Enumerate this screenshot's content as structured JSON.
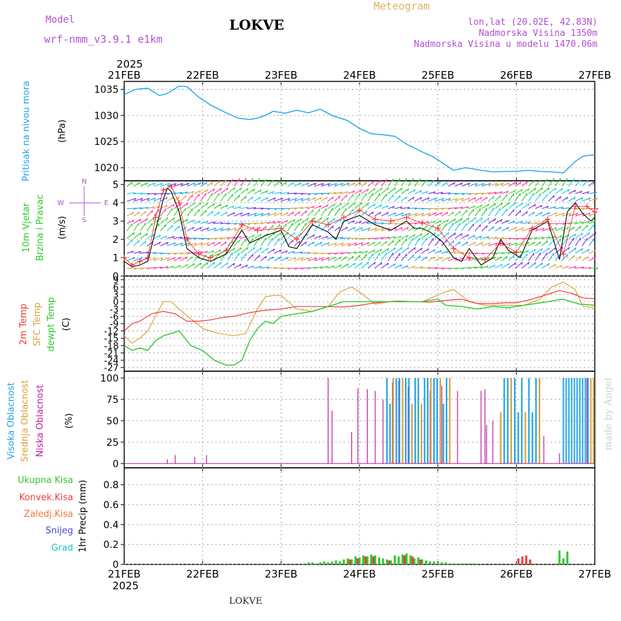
{
  "header": {
    "model_label": "Model",
    "model_name": "wrf-nmm_v3.9.1 e1km",
    "station": "LOKVE",
    "meteogram": "Meteogram",
    "lonlat": "lon,lat (20.02E, 42.83N)",
    "altitude": "Nadmorska Visina 1350m",
    "model_altitude": "Nadmorska Visina u modelu 1470.06m"
  },
  "footer": {
    "station": "LOKVE",
    "watermark": "made by Angel"
  },
  "time_axis": {
    "year": "2025",
    "ticks": [
      "21FEB",
      "22FEB",
      "23FEB",
      "24FEB",
      "25FEB",
      "26FEB",
      "27FEB"
    ]
  },
  "colors": {
    "pressure": "#1ea4e6",
    "wind_speed": "#000000",
    "gust": "#ff3030",
    "temp2m": "#ee3b3b",
    "sfc_temp": "#d9a23a",
    "dewpt": "#2cc82c",
    "cloud_high": "#1ea4e6",
    "cloud_mid": "#d9a23a",
    "cloud_low": "#c0209a",
    "precip_total": "#2cc82c",
    "precip_conv": "#ee3b3b",
    "precip_frz": "#f07a30",
    "precip_snow": "#4848d8",
    "precip_hail": "#20c0c0",
    "header_purple": "#b050d0",
    "meteogram": "#e0b060"
  },
  "chart_data": [
    {
      "type": "line",
      "title": "",
      "ylabel_parts": [
        "Pritisak na nivou mora",
        "(hPa)"
      ],
      "yticks": [
        1020,
        1025,
        1030,
        1035
      ],
      "ylim": [
        1017.5,
        1036.5
      ],
      "xlim": [
        0,
        6
      ],
      "series": [
        {
          "x": [
            0,
            0.15,
            0.3,
            0.45,
            0.55,
            0.7,
            0.8,
            0.95,
            1.1,
            1.3,
            1.45,
            1.6,
            1.7,
            1.8,
            1.9,
            2.05,
            2.2,
            2.35,
            2.5,
            2.65,
            2.85,
            3.0,
            3.15,
            3.3,
            3.45,
            3.6,
            3.8,
            3.95,
            4.05,
            4.2,
            4.35,
            4.55,
            4.7,
            4.85,
            5.0,
            5.15,
            5.3,
            5.45,
            5.6,
            5.75,
            5.85,
            6.0
          ],
          "values": [
            1034,
            1035,
            1035.2,
            1033.8,
            1034.2,
            1035.6,
            1035.5,
            1033.5,
            1032,
            1030.5,
            1029.5,
            1029.2,
            1029.5,
            1030,
            1030.8,
            1030.4,
            1031,
            1030.5,
            1031.2,
            1030,
            1029,
            1027.5,
            1026.5,
            1026.3,
            1026,
            1024.5,
            1023,
            1022,
            1021,
            1019.5,
            1020,
            1019.5,
            1019.2,
            1019.3,
            1019.3,
            1019.5,
            1019.3,
            1019.2,
            1019.0,
            1021.2,
            1022.2,
            1022.5
          ]
        }
      ]
    },
    {
      "type": "line",
      "title": "",
      "ylabel_parts": [
        "10m Vjetar",
        "Brzina i Pravac",
        "(m/s)"
      ],
      "compass": [
        "N",
        "S",
        "W",
        "E"
      ],
      "yticks": [
        0,
        1,
        2,
        3,
        4,
        5
      ],
      "ylim": [
        0,
        5.2
      ],
      "xlim": [
        0,
        6
      ],
      "series": [
        {
          "name": "speed",
          "x": [
            0,
            0.1,
            0.2,
            0.3,
            0.4,
            0.5,
            0.55,
            0.6,
            0.7,
            0.8,
            0.95,
            1.1,
            1.3,
            1.5,
            1.6,
            1.7,
            1.8,
            2.0,
            2.1,
            2.2,
            2.4,
            2.6,
            2.7,
            2.8,
            3.0,
            3.2,
            3.4,
            3.6,
            3.7,
            3.8,
            3.9,
            4.05,
            4.2,
            4.3,
            4.4,
            4.55,
            4.7,
            4.8,
            4.9,
            5.05,
            5.2,
            5.4,
            5.55,
            5.65,
            5.75,
            5.85,
            5.95,
            6.0
          ],
          "values": [
            0.8,
            0.5,
            0.6,
            0.8,
            2.5,
            4.2,
            4.8,
            4.6,
            3.5,
            1.5,
            1.0,
            0.8,
            1.2,
            2.5,
            1.8,
            2.0,
            2.2,
            2.5,
            1.6,
            1.5,
            2.8,
            2.4,
            2.0,
            3.0,
            3.3,
            2.8,
            2.5,
            3.0,
            2.6,
            2.6,
            2.4,
            1.9,
            1.0,
            0.8,
            1.5,
            0.6,
            1.0,
            2.0,
            1.4,
            1.0,
            2.5,
            3.0,
            0.9,
            3.5,
            4.0,
            3.4,
            3.0,
            3.2
          ]
        },
        {
          "name": "gust",
          "x": [
            0,
            0.1,
            0.2,
            0.3,
            0.4,
            0.5,
            0.6,
            0.7,
            0.8,
            0.95,
            1.1,
            1.3,
            1.5,
            1.7,
            2.0,
            2.2,
            2.4,
            2.6,
            2.8,
            3.0,
            3.2,
            3.4,
            3.6,
            3.8,
            4.0,
            4.2,
            4.4,
            4.6,
            4.8,
            5.0,
            5.2,
            5.4,
            5.6,
            5.75,
            5.9,
            6.0
          ],
          "values": [
            1.0,
            0.6,
            0.8,
            1.0,
            3.2,
            4.7,
            4.9,
            4.0,
            2.0,
            1.2,
            1.0,
            1.4,
            2.8,
            2.5,
            2.6,
            2.0,
            3.0,
            2.8,
            3.2,
            3.6,
            3.1,
            3.0,
            3.2,
            2.9,
            2.6,
            1.5,
            1.0,
            0.9,
            1.8,
            1.3,
            2.6,
            3.1,
            1.2,
            3.8,
            3.8,
            3.5
          ]
        }
      ]
    },
    {
      "type": "line",
      "title": "",
      "ylabel_parts": [
        "2m Temp",
        "SFC Temp",
        "dewpt Temp",
        "(C)"
      ],
      "yticks": [
        -27,
        -24,
        -21,
        -18,
        -15,
        -12,
        -9,
        -6,
        -3,
        0,
        3,
        6,
        9
      ],
      "ylim": [
        -28.5,
        10.5
      ],
      "xlim": [
        0,
        6
      ],
      "series": [
        {
          "name": "2m Temp",
          "x": [
            0,
            0.1,
            0.2,
            0.35,
            0.5,
            0.65,
            0.8,
            0.95,
            1.1,
            1.25,
            1.4,
            1.6,
            1.8,
            2.0,
            2.2,
            2.5,
            2.8,
            3.0,
            3.2,
            3.35,
            3.5,
            3.7,
            3.9,
            4.1,
            4.3,
            4.5,
            4.7,
            4.85,
            5.0,
            5.2,
            5.4,
            5.55,
            5.7,
            5.85,
            6.0
          ],
          "values": [
            -12,
            -9,
            -8,
            -5,
            -4,
            -5,
            -8,
            -8,
            -7.5,
            -6.5,
            -6,
            -4.5,
            -3.5,
            -3,
            -2,
            -2,
            -2.2,
            -1.5,
            -0.5,
            0,
            0.2,
            0,
            -0.2,
            0.5,
            1,
            -0.8,
            -0.8,
            -0.5,
            -0.5,
            1,
            3,
            4.5,
            3.5,
            1.5,
            1.2
          ]
        },
        {
          "name": "SFC Temp",
          "x": [
            0,
            0.1,
            0.2,
            0.3,
            0.4,
            0.5,
            0.6,
            0.7,
            0.85,
            1.0,
            1.2,
            1.4,
            1.55,
            1.7,
            1.8,
            1.9,
            2.0,
            2.2,
            2.4,
            2.6,
            2.75,
            2.9,
            3.0,
            3.2,
            3.4,
            3.6,
            3.8,
            3.95,
            4.1,
            4.2,
            4.4,
            4.6,
            4.75,
            4.9,
            5.1,
            5.3,
            5.45,
            5.6,
            5.75,
            5.85,
            6.0
          ],
          "values": [
            -14,
            -17,
            -15,
            -12,
            -6,
            0,
            0,
            -3,
            -7,
            -11,
            -13,
            -14,
            -13,
            -3,
            2,
            2.5,
            2.5,
            -3,
            -4,
            -2,
            4,
            6,
            4,
            -1,
            0,
            0,
            0,
            2,
            4,
            5,
            0,
            -1.5,
            -1.5,
            -1.5,
            -1.5,
            1,
            6,
            8,
            5,
            -2,
            -2.5
          ]
        },
        {
          "name": "dewpt Temp",
          "x": [
            0,
            0.1,
            0.2,
            0.3,
            0.4,
            0.5,
            0.6,
            0.7,
            0.85,
            1.0,
            1.15,
            1.3,
            1.4,
            1.5,
            1.6,
            1.7,
            1.8,
            1.9,
            2.0,
            2.2,
            2.4,
            2.6,
            2.8,
            3.0,
            3.2,
            3.4,
            3.6,
            3.8,
            4.0,
            4.1,
            4.3,
            4.5,
            4.7,
            4.9,
            5.0,
            5.2,
            5.4,
            5.6,
            5.8,
            6.0
          ],
          "values": [
            -18,
            -20,
            -19,
            -20,
            -16,
            -14,
            -13,
            -12,
            -18,
            -20,
            -24,
            -26,
            -26,
            -24,
            -16,
            -11,
            -8,
            -9,
            -6,
            -5,
            -4,
            -2,
            0,
            0,
            0,
            0,
            0,
            0,
            1,
            -1.5,
            -2,
            -3,
            -2,
            -2.5,
            -2,
            -1,
            0,
            1,
            -1,
            -1.5
          ]
        }
      ]
    },
    {
      "type": "bar",
      "title": "",
      "ylabel_parts": [
        "Visoka Oblacnost",
        "Srednja Oblacnost",
        "Niska Oblacnost",
        "(%)"
      ],
      "yticks": [
        0,
        25,
        50,
        75,
        100
      ],
      "ylim": [
        -5,
        108
      ],
      "xlim": [
        0,
        6
      ]
    },
    {
      "type": "bar",
      "title": "",
      "ylabel_parts": [
        "1hr Precip (mm)"
      ],
      "legend": [
        "Ukupna Kisa",
        "Konvek.Kisa",
        "Zaledj.Kisa",
        "Snijeg",
        "Grad"
      ],
      "yticks": [
        0,
        0.2,
        0.4,
        0.6,
        0.8
      ],
      "yticklabels": [
        "0",
        "0.2",
        "0.4",
        "0.6",
        "0.8"
      ],
      "ylim": [
        0,
        0.97
      ],
      "xlim": [
        0,
        6
      ],
      "series": [
        {
          "name": "Ukupna Kisa",
          "x": [
            2.3,
            2.35,
            2.4,
            2.45,
            2.5,
            2.55,
            2.6,
            2.65,
            2.7,
            2.75,
            2.8,
            2.85,
            2.9,
            2.95,
            3.0,
            3.05,
            3.1,
            3.15,
            3.2,
            3.25,
            3.3,
            3.35,
            3.4,
            3.45,
            3.5,
            3.55,
            3.6,
            3.65,
            3.7,
            3.75,
            3.8,
            3.85,
            3.9,
            3.95,
            4.0,
            4.05,
            4.1,
            4.15,
            4.2,
            4.25,
            4.3,
            4.35,
            4.4,
            4.45,
            5.5,
            5.55,
            5.6,
            5.65
          ],
          "values": [
            0.01,
            0.02,
            0.02,
            0.01,
            0.02,
            0.03,
            0.02,
            0.03,
            0.04,
            0.03,
            0.05,
            0.06,
            0.05,
            0.08,
            0.07,
            0.09,
            0.08,
            0.1,
            0.09,
            0.07,
            0.06,
            0.05,
            0.04,
            0.09,
            0.08,
            0.1,
            0.11,
            0.09,
            0.06,
            0.07,
            0.05,
            0.04,
            0.03,
            0.03,
            0.02,
            0.02,
            0.02,
            0.01,
            0.01,
            0.01,
            0.01,
            0.01,
            0.01,
            0.01,
            0.01,
            0.14,
            0.06,
            0.13
          ]
        },
        {
          "name": "Konvek.Kisa",
          "x": [
            2.85,
            2.95,
            3.05,
            3.15,
            3.35,
            3.55,
            3.65,
            3.75,
            5.0,
            5.05,
            5.1,
            5.15
          ],
          "values": [
            0.05,
            0.06,
            0.08,
            0.08,
            0.04,
            0.09,
            0.08,
            0.05,
            0.06,
            0.08,
            0.09,
            0.05
          ]
        }
      ]
    }
  ]
}
